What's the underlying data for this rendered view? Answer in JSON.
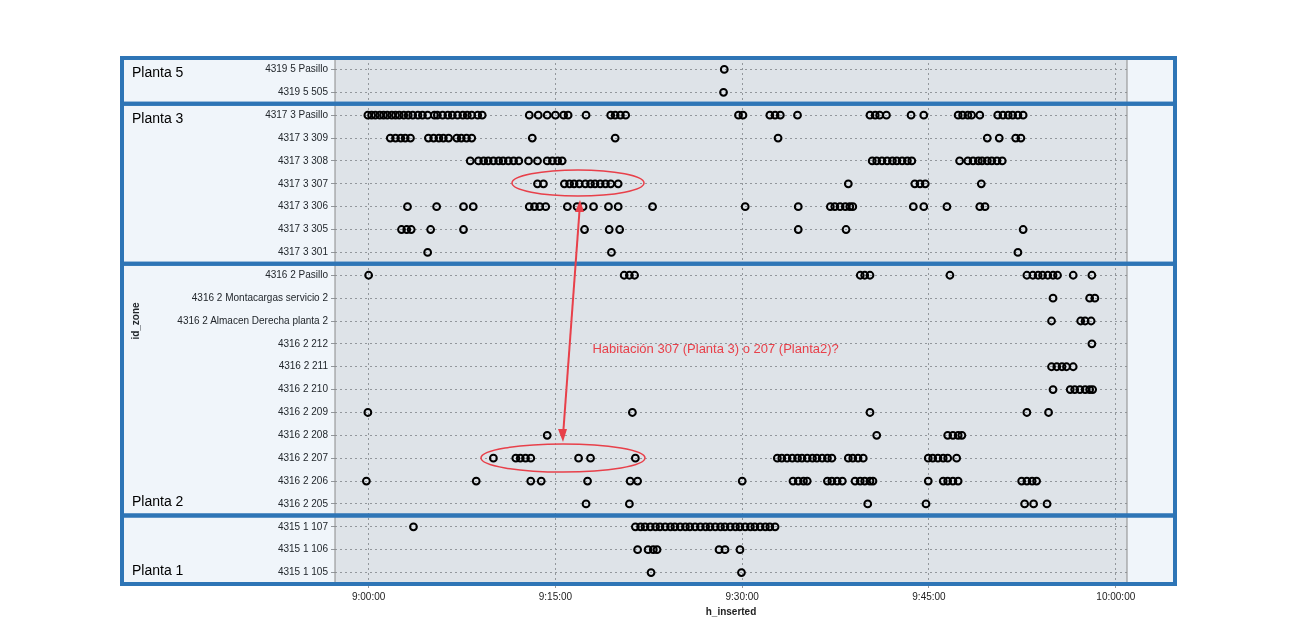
{
  "chart_data": {
    "type": "scatter",
    "orientation": "horizontal",
    "xlabel": "h_inserted",
    "ylabel": "id_zone",
    "categories": [
      "4319 5 Pasillo",
      "4319 5 505",
      "4317 3 Pasillo",
      "4317 3 309",
      "4317 3 308",
      "4317 3 307",
      "4317 3 306",
      "4317 3 305",
      "4317 3 301",
      "4316 2 Pasillo",
      "4316 2 Montacargas servicio 2",
      "4316 2 Almacen Derecha planta 2",
      "4316 2 212",
      "4316 2 211",
      "4316 2 210",
      "4316 2 209",
      "4316 2 208",
      "4316 2 207",
      "4316 2 206",
      "4316 2 205",
      "4315 1 107",
      "4315 1 106",
      "4315 1 105"
    ],
    "xlim": [
      8.955,
      10.015
    ],
    "xticks": [
      {
        "value": 9,
        "label": "9:00:00"
      },
      {
        "value": 9.25,
        "label": "9:15:00"
      },
      {
        "value": 9.5,
        "label": "9:30:00"
      },
      {
        "value": 9.75,
        "label": "9:45:00"
      },
      {
        "value": 10,
        "label": "10:00:00"
      }
    ],
    "grid": true,
    "legend": false,
    "marker": "circle",
    "series": [
      {
        "color": "#000000",
        "values": [
          9.476,
          9.475,
          8.999,
          9.029,
          9.136,
          9.226,
          9.052,
          9.044,
          9.079,
          9.0,
          9.916,
          9.914,
          9.968,
          9.914,
          9.916,
          8.999,
          9.239,
          9.167,
          8.997,
          9.291,
          9.06,
          9.36,
          9.378
        ]
      },
      {
        "color": "#000000",
        "values": [
          null,
          null,
          9.004,
          9.036,
          9.147,
          9.234,
          9.091,
          9.051,
          9.325,
          9.342,
          9.965,
          9.953,
          null,
          9.921,
          9.939,
          9.353,
          9.68,
          9.197,
          9.144,
          9.349,
          9.357,
          9.374,
          9.499
        ]
      },
      {
        "color": "#000000",
        "values": [
          null,
          null,
          9.009,
          9.043,
          9.154,
          9.262,
          9.127,
          9.057,
          9.869,
          9.349,
          9.972,
          9.959,
          null,
          9.928,
          9.945,
          9.671,
          9.775,
          9.203,
          9.217,
          9.668,
          9.364,
          9.381,
          null
        ]
      },
      {
        "color": "#000000",
        "values": [
          null,
          null,
          9.015,
          9.049,
          9.16,
          9.269,
          9.14,
          9.083,
          null,
          9.356,
          null,
          9.967,
          null,
          9.934,
          9.952,
          9.881,
          9.782,
          9.21,
          9.231,
          9.746,
          9.37,
          9.386,
          null
        ]
      },
      {
        "color": "#000000",
        "values": [
          null,
          null,
          9.02,
          9.056,
          9.167,
          9.275,
          9.215,
          9.127,
          null,
          9.658,
          null,
          null,
          null,
          9.943,
          9.959,
          9.91,
          9.789,
          9.217,
          9.293,
          9.878,
          9.377,
          9.469,
          null
        ]
      },
      {
        "color": "#000000",
        "values": [
          null,
          null,
          9.025,
          9.08,
          9.174,
          9.282,
          9.222,
          9.289,
          null,
          9.664,
          null,
          null,
          null,
          null,
          9.965,
          null,
          9.794,
          9.281,
          9.35,
          9.89,
          9.384,
          9.477,
          null
        ]
      },
      {
        "color": "#000000",
        "values": [
          null,
          null,
          9.031,
          9.087,
          9.18,
          9.29,
          9.229,
          9.322,
          null,
          9.671,
          null,
          null,
          null,
          null,
          9.969,
          null,
          null,
          9.297,
          9.36,
          9.908,
          9.39,
          9.497,
          null
        ]
      },
      {
        "color": "#000000",
        "values": [
          null,
          null,
          9.036,
          9.094,
          9.187,
          9.297,
          9.237,
          9.336,
          null,
          9.778,
          null,
          null,
          null,
          null,
          null,
          null,
          null,
          9.357,
          9.5,
          null,
          9.397,
          null,
          null
        ]
      },
      {
        "color": "#000000",
        "values": [
          null,
          null,
          9.041,
          9.1,
          9.194,
          9.303,
          9.266,
          9.575,
          null,
          9.881,
          null,
          null,
          null,
          null,
          null,
          null,
          null,
          9.547,
          9.568,
          null,
          9.404,
          null,
          null
        ]
      },
      {
        "color": "#000000",
        "values": [
          null,
          null,
          9.047,
          9.107,
          9.201,
          9.31,
          9.279,
          9.639,
          null,
          9.889,
          null,
          null,
          null,
          null,
          null,
          null,
          null,
          9.553,
          9.575,
          null,
          9.41,
          null,
          null
        ]
      },
      {
        "color": "#000000",
        "values": [
          null,
          null,
          9.053,
          9.118,
          9.214,
          9.317,
          9.287,
          9.876,
          null,
          9.896,
          null,
          null,
          null,
          null,
          null,
          null,
          null,
          9.56,
          9.582,
          null,
          9.417,
          null,
          null
        ]
      },
      {
        "color": "#000000",
        "values": [
          null,
          null,
          9.059,
          9.124,
          9.226,
          9.324,
          9.301,
          null,
          null,
          9.902,
          null,
          null,
          null,
          null,
          null,
          null,
          null,
          9.567,
          9.587,
          null,
          9.424,
          null,
          null
        ]
      },
      {
        "color": "#000000",
        "values": [
          null,
          null,
          9.066,
          9.131,
          9.239,
          9.334,
          9.321,
          null,
          null,
          9.909,
          null,
          null,
          null,
          null,
          null,
          null,
          null,
          9.574,
          9.614,
          null,
          9.43,
          null,
          null
        ]
      },
      {
        "color": "#000000",
        "values": [
          null,
          null,
          9.072,
          9.138,
          9.246,
          9.642,
          9.334,
          null,
          null,
          9.916,
          null,
          null,
          null,
          null,
          null,
          null,
          null,
          9.58,
          9.62,
          null,
          9.437,
          null,
          null
        ]
      },
      {
        "color": "#000000",
        "values": [
          null,
          null,
          9.079,
          9.219,
          9.253,
          9.731,
          9.38,
          null,
          null,
          9.922,
          null,
          null,
          null,
          null,
          null,
          null,
          null,
          9.587,
          9.627,
          null,
          9.444,
          null,
          null
        ]
      },
      {
        "color": "#000000",
        "values": [
          null,
          null,
          9.088,
          9.33,
          9.259,
          9.738,
          9.504,
          null,
          null,
          9.943,
          null,
          null,
          null,
          null,
          null,
          null,
          null,
          9.594,
          9.634,
          null,
          9.451,
          null,
          null
        ]
      },
      {
        "color": "#000000",
        "values": [
          null,
          null,
          9.092,
          9.548,
          9.674,
          9.745,
          9.575,
          null,
          null,
          9.968,
          null,
          null,
          null,
          null,
          null,
          null,
          null,
          9.6,
          9.651,
          null,
          9.457,
          null,
          null
        ]
      },
      {
        "color": "#000000",
        "values": [
          null,
          null,
          9.099,
          9.828,
          9.68,
          9.82,
          9.618,
          null,
          null,
          null,
          null,
          null,
          null,
          null,
          null,
          null,
          null,
          9.607,
          9.658,
          null,
          9.464,
          null,
          null
        ]
      },
      {
        "color": "#000000",
        "values": [
          null,
          null,
          9.106,
          9.844,
          9.687,
          null,
          9.624,
          null,
          null,
          null,
          null,
          null,
          null,
          null,
          null,
          null,
          null,
          9.614,
          9.664,
          null,
          9.471,
          null,
          null
        ]
      },
      {
        "color": "#000000",
        "values": [
          null,
          null,
          9.112,
          9.866,
          9.694,
          null,
          9.631,
          null,
          null,
          null,
          null,
          null,
          null,
          null,
          null,
          null,
          null,
          9.62,
          9.671,
          null,
          9.477,
          null,
          null
        ]
      },
      {
        "color": "#000000",
        "values": [
          null,
          null,
          9.119,
          9.873,
          9.701,
          null,
          9.638,
          null,
          null,
          null,
          null,
          null,
          null,
          null,
          null,
          null,
          null,
          9.642,
          9.675,
          null,
          9.484,
          null,
          null
        ]
      },
      {
        "color": "#000000",
        "values": [
          null,
          null,
          9.126,
          null,
          9.707,
          null,
          9.644,
          null,
          null,
          null,
          null,
          null,
          null,
          null,
          null,
          null,
          null,
          9.648,
          9.749,
          null,
          9.491,
          null,
          null
        ]
      },
      {
        "color": "#000000",
        "values": [
          null,
          null,
          9.132,
          null,
          9.714,
          null,
          9.648,
          null,
          null,
          null,
          null,
          null,
          null,
          null,
          null,
          null,
          null,
          9.655,
          9.769,
          null,
          9.497,
          null,
          null
        ]
      },
      {
        "color": "#000000",
        "values": [
          null,
          null,
          9.138,
          null,
          9.721,
          null,
          9.729,
          null,
          null,
          null,
          null,
          null,
          null,
          null,
          null,
          null,
          null,
          9.662,
          9.775,
          null,
          9.504,
          null,
          null
        ]
      },
      {
        "color": "#000000",
        "values": [
          null,
          null,
          9.146,
          null,
          9.727,
          null,
          9.743,
          null,
          null,
          null,
          null,
          null,
          null,
          null,
          null,
          null,
          null,
          9.749,
          9.782,
          null,
          9.511,
          null,
          null
        ]
      },
      {
        "color": "#000000",
        "values": [
          null,
          null,
          9.152,
          null,
          9.791,
          null,
          9.774,
          null,
          null,
          null,
          null,
          null,
          null,
          null,
          null,
          null,
          null,
          9.755,
          9.789,
          null,
          9.517,
          null,
          null
        ]
      },
      {
        "color": "#000000",
        "values": [
          null,
          null,
          9.215,
          null,
          9.802,
          null,
          9.818,
          null,
          null,
          null,
          null,
          null,
          null,
          null,
          null,
          null,
          null,
          9.762,
          9.874,
          null,
          9.524,
          null,
          null
        ]
      },
      {
        "color": "#000000",
        "values": [
          null,
          null,
          9.227,
          null,
          9.809,
          null,
          9.825,
          null,
          null,
          null,
          null,
          null,
          null,
          null,
          null,
          null,
          null,
          9.769,
          9.881,
          null,
          9.531,
          null,
          null
        ]
      },
      {
        "color": "#000000",
        "values": [
          null,
          null,
          9.239,
          null,
          9.816,
          null,
          null,
          null,
          null,
          null,
          null,
          null,
          null,
          null,
          null,
          null,
          null,
          9.775,
          9.888,
          null,
          9.537,
          null,
          null
        ]
      },
      {
        "color": "#000000",
        "values": [
          null,
          null,
          9.25,
          null,
          9.821,
          null,
          null,
          null,
          null,
          null,
          null,
          null,
          null,
          null,
          null,
          null,
          null,
          9.787,
          9.894,
          null,
          9.544,
          null,
          null
        ]
      },
      {
        "color": "#000000",
        "values": [
          null,
          null,
          9.261,
          null,
          9.828,
          null,
          null,
          null,
          null,
          null,
          null,
          null,
          null,
          null,
          null,
          null,
          null,
          null,
          null,
          null,
          null,
          null,
          null
        ]
      },
      {
        "color": "#000000",
        "values": [
          null,
          null,
          9.267,
          null,
          9.834,
          null,
          null,
          null,
          null,
          null,
          null,
          null,
          null,
          null,
          null,
          null,
          null,
          null,
          null,
          null,
          null,
          null,
          null
        ]
      },
      {
        "color": "#000000",
        "values": [
          null,
          null,
          9.291,
          null,
          9.841,
          null,
          null,
          null,
          null,
          null,
          null,
          null,
          null,
          null,
          null,
          null,
          null,
          null,
          null,
          null,
          null,
          null,
          null
        ]
      },
      {
        "color": "#000000",
        "values": [
          null,
          null,
          9.324,
          null,
          9.848,
          null,
          null,
          null,
          null,
          null,
          null,
          null,
          null,
          null,
          null,
          null,
          null,
          null,
          null,
          null,
          null,
          null,
          null
        ]
      },
      {
        "color": "#000000",
        "values": [
          null,
          null,
          9.33,
          null,
          null,
          null,
          null,
          null,
          null,
          null,
          null,
          null,
          null,
          null,
          null,
          null,
          null,
          null,
          null,
          null,
          null,
          null,
          null
        ]
      },
      {
        "color": "#000000",
        "values": [
          null,
          null,
          9.337,
          null,
          null,
          null,
          null,
          null,
          null,
          null,
          null,
          null,
          null,
          null,
          null,
          null,
          null,
          null,
          null,
          null,
          null,
          null,
          null
        ]
      },
      {
        "color": "#000000",
        "values": [
          null,
          null,
          9.344,
          null,
          null,
          null,
          null,
          null,
          null,
          null,
          null,
          null,
          null,
          null,
          null,
          null,
          null,
          null,
          null,
          null,
          null,
          null,
          null
        ]
      },
      {
        "color": "#000000",
        "values": [
          null,
          null,
          9.495,
          null,
          null,
          null,
          null,
          null,
          null,
          null,
          null,
          null,
          null,
          null,
          null,
          null,
          null,
          null,
          null,
          null,
          null,
          null,
          null
        ]
      },
      {
        "color": "#000000",
        "values": [
          null,
          null,
          9.501,
          null,
          null,
          null,
          null,
          null,
          null,
          null,
          null,
          null,
          null,
          null,
          null,
          null,
          null,
          null,
          null,
          null,
          null,
          null,
          null
        ]
      },
      {
        "color": "#000000",
        "values": [
          null,
          null,
          9.537,
          null,
          null,
          null,
          null,
          null,
          null,
          null,
          null,
          null,
          null,
          null,
          null,
          null,
          null,
          null,
          null,
          null,
          null,
          null,
          null
        ]
      },
      {
        "color": "#000000",
        "values": [
          null,
          null,
          9.544,
          null,
          null,
          null,
          null,
          null,
          null,
          null,
          null,
          null,
          null,
          null,
          null,
          null,
          null,
          null,
          null,
          null,
          null,
          null,
          null
        ]
      },
      {
        "color": "#000000",
        "values": [
          null,
          null,
          9.551,
          null,
          null,
          null,
          null,
          null,
          null,
          null,
          null,
          null,
          null,
          null,
          null,
          null,
          null,
          null,
          null,
          null,
          null,
          null,
          null
        ]
      },
      {
        "color": "#000000",
        "values": [
          null,
          null,
          9.574,
          null,
          null,
          null,
          null,
          null,
          null,
          null,
          null,
          null,
          null,
          null,
          null,
          null,
          null,
          null,
          null,
          null,
          null,
          null,
          null
        ]
      },
      {
        "color": "#000000",
        "values": [
          null,
          null,
          9.671,
          null,
          null,
          null,
          null,
          null,
          null,
          null,
          null,
          null,
          null,
          null,
          null,
          null,
          null,
          null,
          null,
          null,
          null,
          null,
          null
        ]
      },
      {
        "color": "#000000",
        "values": [
          null,
          null,
          9.678,
          null,
          null,
          null,
          null,
          null,
          null,
          null,
          null,
          null,
          null,
          null,
          null,
          null,
          null,
          null,
          null,
          null,
          null,
          null,
          null
        ]
      },
      {
        "color": "#000000",
        "values": [
          null,
          null,
          9.684,
          null,
          null,
          null,
          null,
          null,
          null,
          null,
          null,
          null,
          null,
          null,
          null,
          null,
          null,
          null,
          null,
          null,
          null,
          null,
          null
        ]
      },
      {
        "color": "#000000",
        "values": [
          null,
          null,
          9.693,
          null,
          null,
          null,
          null,
          null,
          null,
          null,
          null,
          null,
          null,
          null,
          null,
          null,
          null,
          null,
          null,
          null,
          null,
          null,
          null
        ]
      },
      {
        "color": "#000000",
        "values": [
          null,
          null,
          9.726,
          null,
          null,
          null,
          null,
          null,
          null,
          null,
          null,
          null,
          null,
          null,
          null,
          null,
          null,
          null,
          null,
          null,
          null,
          null,
          null
        ]
      },
      {
        "color": "#000000",
        "values": [
          null,
          null,
          9.743,
          null,
          null,
          null,
          null,
          null,
          null,
          null,
          null,
          null,
          null,
          null,
          null,
          null,
          null,
          null,
          null,
          null,
          null,
          null,
          null
        ]
      },
      {
        "color": "#000000",
        "values": [
          null,
          null,
          9.789,
          null,
          null,
          null,
          null,
          null,
          null,
          null,
          null,
          null,
          null,
          null,
          null,
          null,
          null,
          null,
          null,
          null,
          null,
          null,
          null
        ]
      },
      {
        "color": "#000000",
        "values": [
          null,
          null,
          9.795,
          null,
          null,
          null,
          null,
          null,
          null,
          null,
          null,
          null,
          null,
          null,
          null,
          null,
          null,
          null,
          null,
          null,
          null,
          null,
          null
        ]
      },
      {
        "color": "#000000",
        "values": [
          null,
          null,
          9.802,
          null,
          null,
          null,
          null,
          null,
          null,
          null,
          null,
          null,
          null,
          null,
          null,
          null,
          null,
          null,
          null,
          null,
          null,
          null,
          null
        ]
      },
      {
        "color": "#000000",
        "values": [
          null,
          null,
          9.807,
          null,
          null,
          null,
          null,
          null,
          null,
          null,
          null,
          null,
          null,
          null,
          null,
          null,
          null,
          null,
          null,
          null,
          null,
          null,
          null
        ]
      },
      {
        "color": "#000000",
        "values": [
          null,
          null,
          9.818,
          null,
          null,
          null,
          null,
          null,
          null,
          null,
          null,
          null,
          null,
          null,
          null,
          null,
          null,
          null,
          null,
          null,
          null,
          null,
          null
        ]
      },
      {
        "color": "#000000",
        "values": [
          null,
          null,
          9.842,
          null,
          null,
          null,
          null,
          null,
          null,
          null,
          null,
          null,
          null,
          null,
          null,
          null,
          null,
          null,
          null,
          null,
          null,
          null,
          null
        ]
      },
      {
        "color": "#000000",
        "values": [
          null,
          null,
          9.849,
          null,
          null,
          null,
          null,
          null,
          null,
          null,
          null,
          null,
          null,
          null,
          null,
          null,
          null,
          null,
          null,
          null,
          null,
          null,
          null
        ]
      },
      {
        "color": "#000000",
        "values": [
          null,
          null,
          9.856,
          null,
          null,
          null,
          null,
          null,
          null,
          null,
          null,
          null,
          null,
          null,
          null,
          null,
          null,
          null,
          null,
          null,
          null,
          null,
          null
        ]
      },
      {
        "color": "#000000",
        "values": [
          null,
          null,
          9.862,
          null,
          null,
          null,
          null,
          null,
          null,
          null,
          null,
          null,
          null,
          null,
          null,
          null,
          null,
          null,
          null,
          null,
          null,
          null,
          null
        ]
      },
      {
        "color": "#000000",
        "values": [
          null,
          null,
          9.869,
          null,
          null,
          null,
          null,
          null,
          null,
          null,
          null,
          null,
          null,
          null,
          null,
          null,
          null,
          null,
          null,
          null,
          null,
          null,
          null
        ]
      },
      {
        "color": "#000000",
        "values": [
          null,
          null,
          9.876,
          null,
          null,
          null,
          null,
          null,
          null,
          null,
          null,
          null,
          null,
          null,
          null,
          null,
          null,
          null,
          null,
          null,
          null,
          null,
          null
        ]
      }
    ],
    "bands": [
      {
        "axis": "y",
        "from": "4319 5 Pasillo",
        "to": "4319 5 505",
        "label": "Planta 5",
        "color": "#2e75b6"
      },
      {
        "axis": "y",
        "from": "4317 3 Pasillo",
        "to": "4317 3 301",
        "label": "Planta 3",
        "color": "#2e75b6"
      },
      {
        "axis": "y",
        "from": "4316 2 Pasillo",
        "to": "4316 2 205",
        "label": "Planta 2",
        "color": "#2e75b6"
      },
      {
        "axis": "y",
        "from": "4315 1 107",
        "to": "4315 1 105",
        "label": "Planta 1",
        "color": "#2e75b6"
      }
    ],
    "annotations": [
      "Habitación 307 (Planta 3) o 207 (Planta2)?"
    ]
  }
}
